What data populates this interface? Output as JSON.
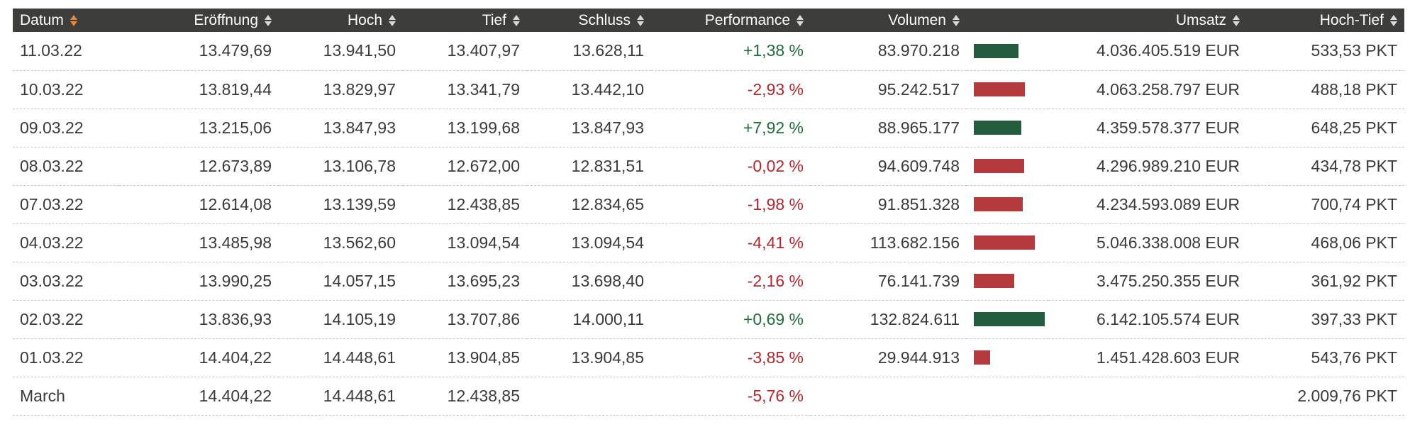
{
  "table": {
    "headers": {
      "datum": "Datum",
      "eroeffnung": "Eröffnung",
      "hoch": "Hoch",
      "tief": "Tief",
      "schluss": "Schluss",
      "performance": "Performance",
      "volumen": "Volumen",
      "umsatz": "Umsatz",
      "hoch_tief": "Hoch-Tief"
    },
    "sorted_column": "Datum",
    "colors": {
      "positive": "#245d3d",
      "negative": "#b43a3e",
      "sort_active": "#e8863a",
      "header_bg": "#3d3d3b"
    },
    "rows": [
      {
        "datum": "11.03.22",
        "eroeffnung": "13.479,69",
        "hoch": "13.941,50",
        "tief": "13.407,97",
        "schluss": "13.628,11",
        "performance": "+1,38 %",
        "trend": "pos",
        "volumen": "83.970.218",
        "volume_value": 83970218,
        "umsatz": "4.036.405.519 EUR",
        "hoch_tief": "533,53 PKT"
      },
      {
        "datum": "10.03.22",
        "eroeffnung": "13.819,44",
        "hoch": "13.829,97",
        "tief": "13.341,79",
        "schluss": "13.442,10",
        "performance": "-2,93 %",
        "trend": "neg",
        "volumen": "95.242.517",
        "volume_value": 95242517,
        "umsatz": "4.063.258.797 EUR",
        "hoch_tief": "488,18 PKT"
      },
      {
        "datum": "09.03.22",
        "eroeffnung": "13.215,06",
        "hoch": "13.847,93",
        "tief": "13.199,68",
        "schluss": "13.847,93",
        "performance": "+7,92 %",
        "trend": "pos",
        "volumen": "88.965.177",
        "volume_value": 88965177,
        "umsatz": "4.359.578.377 EUR",
        "hoch_tief": "648,25 PKT"
      },
      {
        "datum": "08.03.22",
        "eroeffnung": "12.673,89",
        "hoch": "13.106,78",
        "tief": "12.672,00",
        "schluss": "12.831,51",
        "performance": "-0,02 %",
        "trend": "neg",
        "volumen": "94.609.748",
        "volume_value": 94609748,
        "umsatz": "4.296.989.210 EUR",
        "hoch_tief": "434,78 PKT"
      },
      {
        "datum": "07.03.22",
        "eroeffnung": "12.614,08",
        "hoch": "13.139,59",
        "tief": "12.438,85",
        "schluss": "12.834,65",
        "performance": "-1,98 %",
        "trend": "neg",
        "volumen": "91.851.328",
        "volume_value": 91851328,
        "umsatz": "4.234.593.089 EUR",
        "hoch_tief": "700,74 PKT"
      },
      {
        "datum": "04.03.22",
        "eroeffnung": "13.485,98",
        "hoch": "13.562,60",
        "tief": "13.094,54",
        "schluss": "13.094,54",
        "performance": "-4,41 %",
        "trend": "neg",
        "volumen": "113.682.156",
        "volume_value": 113682156,
        "umsatz": "5.046.338.008 EUR",
        "hoch_tief": "468,06 PKT"
      },
      {
        "datum": "03.03.22",
        "eroeffnung": "13.990,25",
        "hoch": "14.057,15",
        "tief": "13.695,23",
        "schluss": "13.698,40",
        "performance": "-2,16 %",
        "trend": "neg",
        "volumen": "76.141.739",
        "volume_value": 76141739,
        "umsatz": "3.475.250.355 EUR",
        "hoch_tief": "361,92 PKT"
      },
      {
        "datum": "02.03.22",
        "eroeffnung": "13.836,93",
        "hoch": "14.105,19",
        "tief": "13.707,86",
        "schluss": "14.000,11",
        "performance": "+0,69 %",
        "trend": "pos",
        "volumen": "132.824.611",
        "volume_value": 132824611,
        "umsatz": "6.142.105.574 EUR",
        "hoch_tief": "397,33 PKT"
      },
      {
        "datum": "01.03.22",
        "eroeffnung": "14.404,22",
        "hoch": "14.448,61",
        "tief": "13.904,85",
        "schluss": "13.904,85",
        "performance": "-3,85 %",
        "trend": "neg",
        "volumen": "29.944.913",
        "volume_value": 29944913,
        "umsatz": "1.451.428.603 EUR",
        "hoch_tief": "543,76 PKT"
      }
    ],
    "summary": {
      "datum": "March",
      "eroeffnung": "14.404,22",
      "hoch": "14.448,61",
      "tief": "12.438,85",
      "schluss": "",
      "performance": "-5,76 %",
      "trend": "neg",
      "volumen": "",
      "umsatz": "",
      "hoch_tief": "2.009,76 PKT"
    }
  }
}
